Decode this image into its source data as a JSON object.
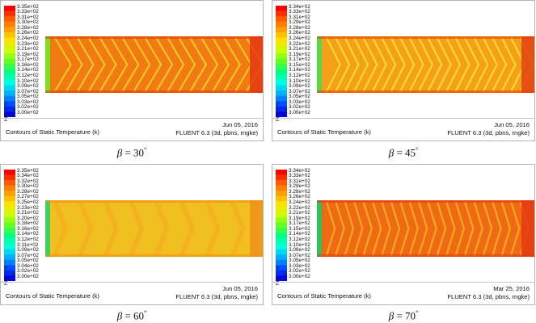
{
  "panels": [
    {
      "legend": [
        "3.35e+02",
        "3.33e+02",
        "3.31e+02",
        "3.30e+02",
        "3.28e+02",
        "3.26e+02",
        "3.24e+02",
        "3.23e+02",
        "3.21e+02",
        "3.19e+02",
        "3.17e+02",
        "3.16e+02",
        "3.14e+02",
        "3.12e+02",
        "3.10e+02",
        "3.09e+02",
        "3.07e+02",
        "3.05e+02",
        "3.03e+02",
        "3.02e+02",
        "3.00e+02"
      ],
      "axes": {
        "y": "Y",
        "x": "X",
        "z": "Z"
      },
      "title": "Contours of Static Temperature (k)",
      "date": "Jun 05, 2016",
      "solver": "FLUENT 6.3 (3d, pbns, rngke)",
      "caption": {
        "beta": "β",
        "eq": " = 30",
        "deg": "°"
      },
      "field": {
        "base": "#f07a14",
        "edge": "#e43a10",
        "stripe": "#ffd020",
        "inlet": "#7ee020",
        "angle": 30,
        "stripes": 18
      }
    },
    {
      "legend": [
        "3.34e+02",
        "3.33e+02",
        "3.31e+02",
        "3.29e+02",
        "3.28e+02",
        "3.26e+02",
        "3.24e+02",
        "3.22e+02",
        "3.21e+02",
        "3.19e+02",
        "3.17e+02",
        "3.15e+02",
        "3.14e+02",
        "3.12e+02",
        "3.10e+02",
        "3.09e+02",
        "3.07e+02",
        "3.05e+02",
        "3.03e+02",
        "3.02e+02",
        "3.00e+02"
      ],
      "axes": {
        "y": "Y",
        "x": "X",
        "z": "Z"
      },
      "title": "Contours of Static Temperature (k)",
      "date": "Jun 05, 2016",
      "solver": "FLUENT 6.3 (3d, pbns, rngke)",
      "caption": {
        "beta": "β",
        "eq": " = 45",
        "deg": "°"
      },
      "field": {
        "base": "#f4a018",
        "edge": "#e44010",
        "stripe": "#ffe030",
        "inlet": "#5ad84a",
        "angle": 45,
        "stripes": 22
      }
    },
    {
      "legend": [
        "3.35e+02",
        "3.34e+02",
        "3.32e+02",
        "3.30e+02",
        "3.28e+02",
        "3.27e+02",
        "3.25e+02",
        "3.23e+02",
        "3.21e+02",
        "3.20e+02",
        "3.18e+02",
        "3.16e+02",
        "3.14e+02",
        "3.12e+02",
        "3.11e+02",
        "3.09e+02",
        "3.07e+02",
        "3.05e+02",
        "3.04e+02",
        "3.02e+02",
        "3.00e+02"
      ],
      "axes": {
        "y": "Y",
        "x": "X",
        "z": "Z"
      },
      "title": "Contours of Static Temperature (k)",
      "date": "Jun 05, 2016",
      "solver": "FLUENT 6.3 (3d, pbns, rngke)",
      "caption": {
        "beta": "β",
        "eq": " = 60",
        "deg": "°"
      },
      "field": {
        "base": "#f0c020",
        "edge": "#f09018",
        "stripe": "#f6a81e",
        "inlet": "#40d060",
        "angle": 60,
        "stripes": 8
      }
    },
    {
      "legend": [
        "3.34e+02",
        "3.33e+02",
        "3.31e+02",
        "3.29e+02",
        "3.28e+02",
        "3.26e+02",
        "3.24e+02",
        "3.22e+02",
        "3.21e+02",
        "3.19e+02",
        "3.17e+02",
        "3.15e+02",
        "3.14e+02",
        "3.12e+02",
        "3.10e+02",
        "3.09e+02",
        "3.07e+02",
        "3.05e+02",
        "3.03e+02",
        "3.02e+02",
        "3.00e+02"
      ],
      "axes": {
        "y": "Y",
        "x": "X",
        "z": "Z"
      },
      "title": "Contours of Static Temperature (k)",
      "date": "Mar 25, 2016",
      "solver": "FLUENT 6.3 (3d, pbns, rngke)",
      "caption": {
        "beta": "β",
        "eq": " = 70",
        "deg": "°"
      },
      "field": {
        "base": "#f06a14",
        "edge": "#e43810",
        "stripe": "#f8b020",
        "inlet": "#30c060",
        "angle": 70,
        "stripes": 22
      }
    }
  ],
  "colorbar_stops": [
    "#ff0000",
    "#ff5a00",
    "#ffa000",
    "#ffe000",
    "#c8ff00",
    "#60ff20",
    "#00ff80",
    "#00ffe0",
    "#00b0ff",
    "#0050ff",
    "#0000ff"
  ]
}
